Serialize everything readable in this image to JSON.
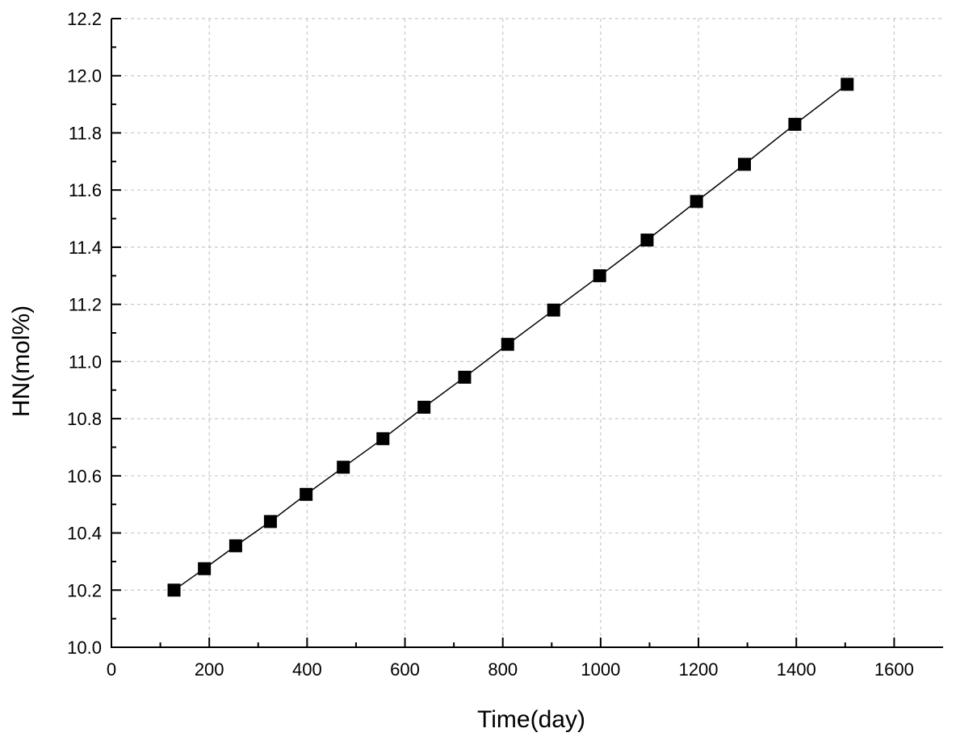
{
  "chart_data": {
    "type": "line",
    "title": "",
    "xlabel": "Time(day)",
    "ylabel": "HN(mol%)",
    "xlim": [
      0,
      1700
    ],
    "ylim": [
      10.0,
      12.2
    ],
    "x_ticks": [
      "0",
      "200",
      "400",
      "600",
      "800",
      "1000",
      "1200",
      "1400",
      "1600"
    ],
    "y_ticks": [
      "10.0",
      "10.2",
      "10.4",
      "10.6",
      "10.8",
      "11.0",
      "11.2",
      "11.4",
      "11.6",
      "11.8",
      "12.0",
      "12.2"
    ],
    "grid": true,
    "marker": "square",
    "series": [
      {
        "x": [
          128,
          190,
          254,
          325,
          398,
          474,
          555,
          639,
          722,
          810,
          904,
          998,
          1095,
          1196,
          1294,
          1397,
          1504
        ],
        "y": [
          10.2,
          10.275,
          10.355,
          10.44,
          10.535,
          10.63,
          10.73,
          10.84,
          10.945,
          11.06,
          11.18,
          11.3,
          11.425,
          11.56,
          11.69,
          11.83,
          11.97
        ],
        "color": "#000000"
      }
    ]
  }
}
